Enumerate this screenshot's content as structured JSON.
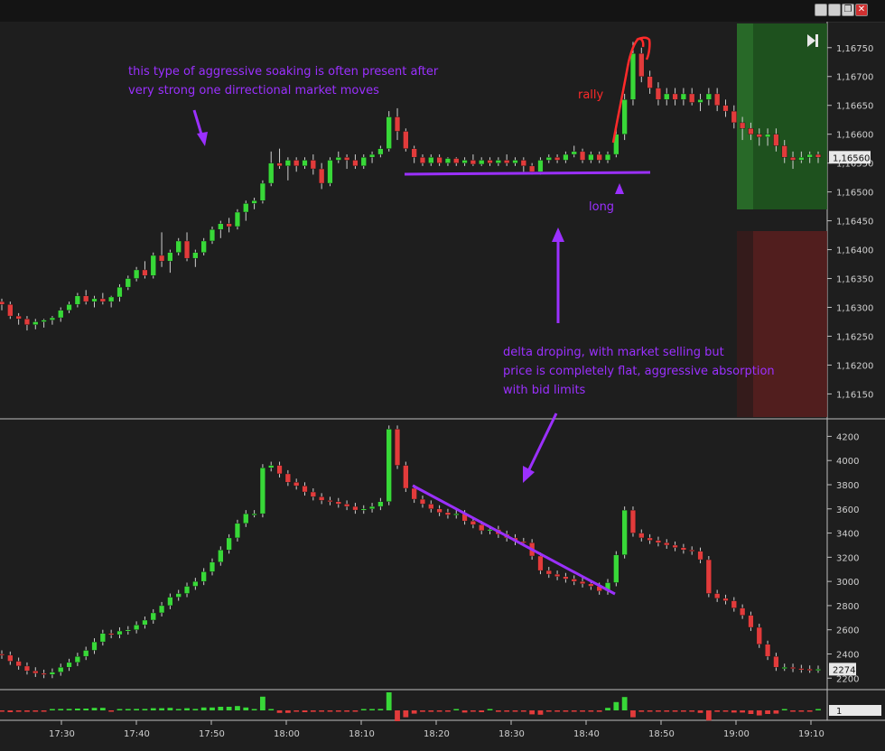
{
  "window": {
    "buttons": [
      "minimize-button",
      "minimize-button-2",
      "restore-button",
      "close-button"
    ],
    "close_glyph": "✕",
    "restore_glyph": "❐"
  },
  "chart_data": [
    {
      "type": "candlestick",
      "name": "price",
      "price_axis_labels": [
        "1,16750",
        "1,16700",
        "1,16650",
        "1,16600",
        "1,16550",
        "1,16500",
        "1,16450",
        "1,16400",
        "1,16350",
        "1,16300",
        "1,16250",
        "1,16200",
        "1,16150"
      ],
      "ylim": [
        1.1611,
        1.16795
      ],
      "last_price_label": "1,16560",
      "last_price": 1.1656,
      "candles": [
        [
          1.1631,
          1.16315,
          1.16295,
          1.16305
        ],
        [
          1.16305,
          1.1631,
          1.1628,
          1.16285
        ],
        [
          1.16285,
          1.1629,
          1.1627,
          1.1628
        ],
        [
          1.1628,
          1.16285,
          1.1626,
          1.1627
        ],
        [
          1.1627,
          1.1628,
          1.16262,
          1.16275
        ],
        [
          1.16275,
          1.1628,
          1.16265,
          1.16278
        ],
        [
          1.16278,
          1.16285,
          1.1627,
          1.16282
        ],
        [
          1.16282,
          1.163,
          1.16275,
          1.16295
        ],
        [
          1.16295,
          1.1631,
          1.1629,
          1.16305
        ],
        [
          1.16305,
          1.16325,
          1.163,
          1.1632
        ],
        [
          1.1632,
          1.1633,
          1.16305,
          1.1631
        ],
        [
          1.1631,
          1.1632,
          1.163,
          1.16315
        ],
        [
          1.16315,
          1.16325,
          1.16305,
          1.1631
        ],
        [
          1.1631,
          1.1632,
          1.163,
          1.16318
        ],
        [
          1.16318,
          1.1634,
          1.1631,
          1.16335
        ],
        [
          1.16335,
          1.16355,
          1.1633,
          1.1635
        ],
        [
          1.1635,
          1.1637,
          1.16345,
          1.16365
        ],
        [
          1.16365,
          1.1638,
          1.1635,
          1.16355
        ],
        [
          1.16355,
          1.16395,
          1.1635,
          1.1639
        ],
        [
          1.1639,
          1.1643,
          1.1637,
          1.1638
        ],
        [
          1.1638,
          1.164,
          1.1636,
          1.16395
        ],
        [
          1.16395,
          1.1642,
          1.1639,
          1.16415
        ],
        [
          1.16415,
          1.1643,
          1.1638,
          1.16385
        ],
        [
          1.16385,
          1.164,
          1.1637,
          1.16395
        ],
        [
          1.16395,
          1.1642,
          1.1639,
          1.16415
        ],
        [
          1.16415,
          1.1644,
          1.1641,
          1.16435
        ],
        [
          1.16435,
          1.1645,
          1.1642,
          1.16445
        ],
        [
          1.16445,
          1.16455,
          1.1643,
          1.1644
        ],
        [
          1.1644,
          1.1647,
          1.16435,
          1.16465
        ],
        [
          1.16465,
          1.16485,
          1.1645,
          1.1648
        ],
        [
          1.1648,
          1.1649,
          1.1647,
          1.16485
        ],
        [
          1.16485,
          1.1652,
          1.1648,
          1.16515
        ],
        [
          1.16515,
          1.1657,
          1.1651,
          1.1655
        ],
        [
          1.1655,
          1.16575,
          1.1654,
          1.16545
        ],
        [
          1.16545,
          1.1656,
          1.1652,
          1.16555
        ],
        [
          1.16555,
          1.1656,
          1.16535,
          1.16545
        ],
        [
          1.16545,
          1.1656,
          1.1654,
          1.16555
        ],
        [
          1.16555,
          1.16565,
          1.1653,
          1.1654
        ],
        [
          1.1654,
          1.1655,
          1.16505,
          1.16515
        ],
        [
          1.16515,
          1.1656,
          1.1651,
          1.16555
        ],
        [
          1.16555,
          1.1657,
          1.1655,
          1.1656
        ],
        [
          1.1656,
          1.16565,
          1.1654,
          1.16555
        ],
        [
          1.16555,
          1.16565,
          1.1654,
          1.16545
        ],
        [
          1.16545,
          1.16565,
          1.1654,
          1.1656
        ],
        [
          1.1656,
          1.1657,
          1.1655,
          1.16565
        ],
        [
          1.16565,
          1.1658,
          1.1656,
          1.16575
        ],
        [
          1.16575,
          1.1664,
          1.1657,
          1.1663
        ],
        [
          1.1663,
          1.16645,
          1.1659,
          1.16605
        ],
        [
          1.16605,
          1.1661,
          1.1657,
          1.16575
        ],
        [
          1.16575,
          1.1658,
          1.1655,
          1.1656
        ],
        [
          1.1656,
          1.16565,
          1.16545,
          1.1655
        ],
        [
          1.1655,
          1.16565,
          1.16545,
          1.1656
        ],
        [
          1.1656,
          1.16565,
          1.16545,
          1.1655
        ],
        [
          1.1655,
          1.1656,
          1.16545,
          1.16558
        ],
        [
          1.16558,
          1.1656,
          1.16545,
          1.1655
        ],
        [
          1.1655,
          1.1656,
          1.16545,
          1.16555
        ],
        [
          1.16555,
          1.16565,
          1.16545,
          1.16548
        ],
        [
          1.16548,
          1.1656,
          1.16545,
          1.16555
        ],
        [
          1.16555,
          1.1656,
          1.16545,
          1.1655
        ],
        [
          1.1655,
          1.1656,
          1.16545,
          1.16555
        ],
        [
          1.16555,
          1.16565,
          1.16545,
          1.1655
        ],
        [
          1.1655,
          1.1656,
          1.16545,
          1.16555
        ],
        [
          1.16555,
          1.1656,
          1.16535,
          1.16545
        ],
        [
          1.16545,
          1.1655,
          1.1653,
          1.16535
        ],
        [
          1.16535,
          1.1656,
          1.1653,
          1.16555
        ],
        [
          1.16555,
          1.16565,
          1.1655,
          1.1656
        ],
        [
          1.1656,
          1.16565,
          1.1655,
          1.16555
        ],
        [
          1.16555,
          1.1657,
          1.1655,
          1.16565
        ],
        [
          1.16565,
          1.1658,
          1.1656,
          1.1657
        ],
        [
          1.1657,
          1.16575,
          1.1655,
          1.16555
        ],
        [
          1.16555,
          1.1657,
          1.1655,
          1.16565
        ],
        [
          1.16565,
          1.1657,
          1.1655,
          1.16555
        ],
        [
          1.16555,
          1.1657,
          1.1655,
          1.16565
        ],
        [
          1.16565,
          1.1661,
          1.1656,
          1.166
        ],
        [
          1.166,
          1.1667,
          1.1659,
          1.1666
        ],
        [
          1.1666,
          1.1676,
          1.1665,
          1.1674
        ],
        [
          1.1674,
          1.1675,
          1.1669,
          1.167
        ],
        [
          1.167,
          1.1671,
          1.1667,
          1.1668
        ],
        [
          1.1668,
          1.1669,
          1.1665,
          1.1666
        ],
        [
          1.1666,
          1.1668,
          1.1665,
          1.1667
        ],
        [
          1.1667,
          1.1668,
          1.1665,
          1.1666
        ],
        [
          1.1666,
          1.1668,
          1.1665,
          1.1667
        ],
        [
          1.1667,
          1.1668,
          1.1665,
          1.16655
        ],
        [
          1.16655,
          1.1667,
          1.1664,
          1.1666
        ],
        [
          1.1666,
          1.1668,
          1.1665,
          1.1667
        ],
        [
          1.1667,
          1.1668,
          1.1664,
          1.1665
        ],
        [
          1.1665,
          1.1666,
          1.1663,
          1.1664
        ],
        [
          1.1664,
          1.1665,
          1.1661,
          1.1662
        ],
        [
          1.1662,
          1.1663,
          1.1659,
          1.1661
        ],
        [
          1.1661,
          1.1662,
          1.1659,
          1.166
        ],
        [
          1.166,
          1.1661,
          1.1658,
          1.16595
        ],
        [
          1.16595,
          1.1661,
          1.1658,
          1.166
        ],
        [
          1.166,
          1.1661,
          1.1657,
          1.1658
        ],
        [
          1.1658,
          1.1659,
          1.1655,
          1.1656
        ],
        [
          1.1656,
          1.1657,
          1.1654,
          1.16555
        ],
        [
          1.16555,
          1.1657,
          1.1655,
          1.1656
        ],
        [
          1.1656,
          1.1657,
          1.1655,
          1.16565
        ],
        [
          1.16565,
          1.1657,
          1.1655,
          1.1656
        ]
      ],
      "annotations": [
        {
          "text_lines": [
            "this type of aggressive soaking is often present after",
            "very strong one dirrectional market moves"
          ],
          "color": "#9b30ff"
        },
        {
          "text": "rally",
          "color": "#ff2a2a"
        },
        {
          "text": "long",
          "color": "#9b30ff"
        },
        {
          "text_lines": [
            "delta droping, with market selling but",
            "price is completely flat, aggressive absorption",
            "with bid limits"
          ],
          "color": "#9b30ff"
        }
      ]
    },
    {
      "type": "candlestick",
      "name": "cumulative delta",
      "axis_labels": [
        "4200",
        "4000",
        "3800",
        "3600",
        "3400",
        "3200",
        "3000",
        "2800",
        "2600",
        "2400",
        "2200"
      ],
      "ylim": [
        2120,
        4330
      ],
      "last_value_label": "2274",
      "last_value": 2274
    },
    {
      "type": "bar",
      "name": "volume",
      "axis_label": "1"
    }
  ],
  "time_axis": {
    "labels": [
      "17:30",
      "17:40",
      "17:50",
      "18:00",
      "18:10",
      "18:20",
      "18:30",
      "18:40",
      "18:50",
      "19:00",
      "19:10"
    ]
  },
  "colors": {
    "up": "#38d838",
    "down": "#e23b3b",
    "purple": "#9b30ff",
    "red": "#ff2a2a",
    "target_zone": "#1f5a1f",
    "stop_zone": "#5a1f1f",
    "background": "#1e1e1e",
    "axis_text": "#d0d0d0"
  }
}
